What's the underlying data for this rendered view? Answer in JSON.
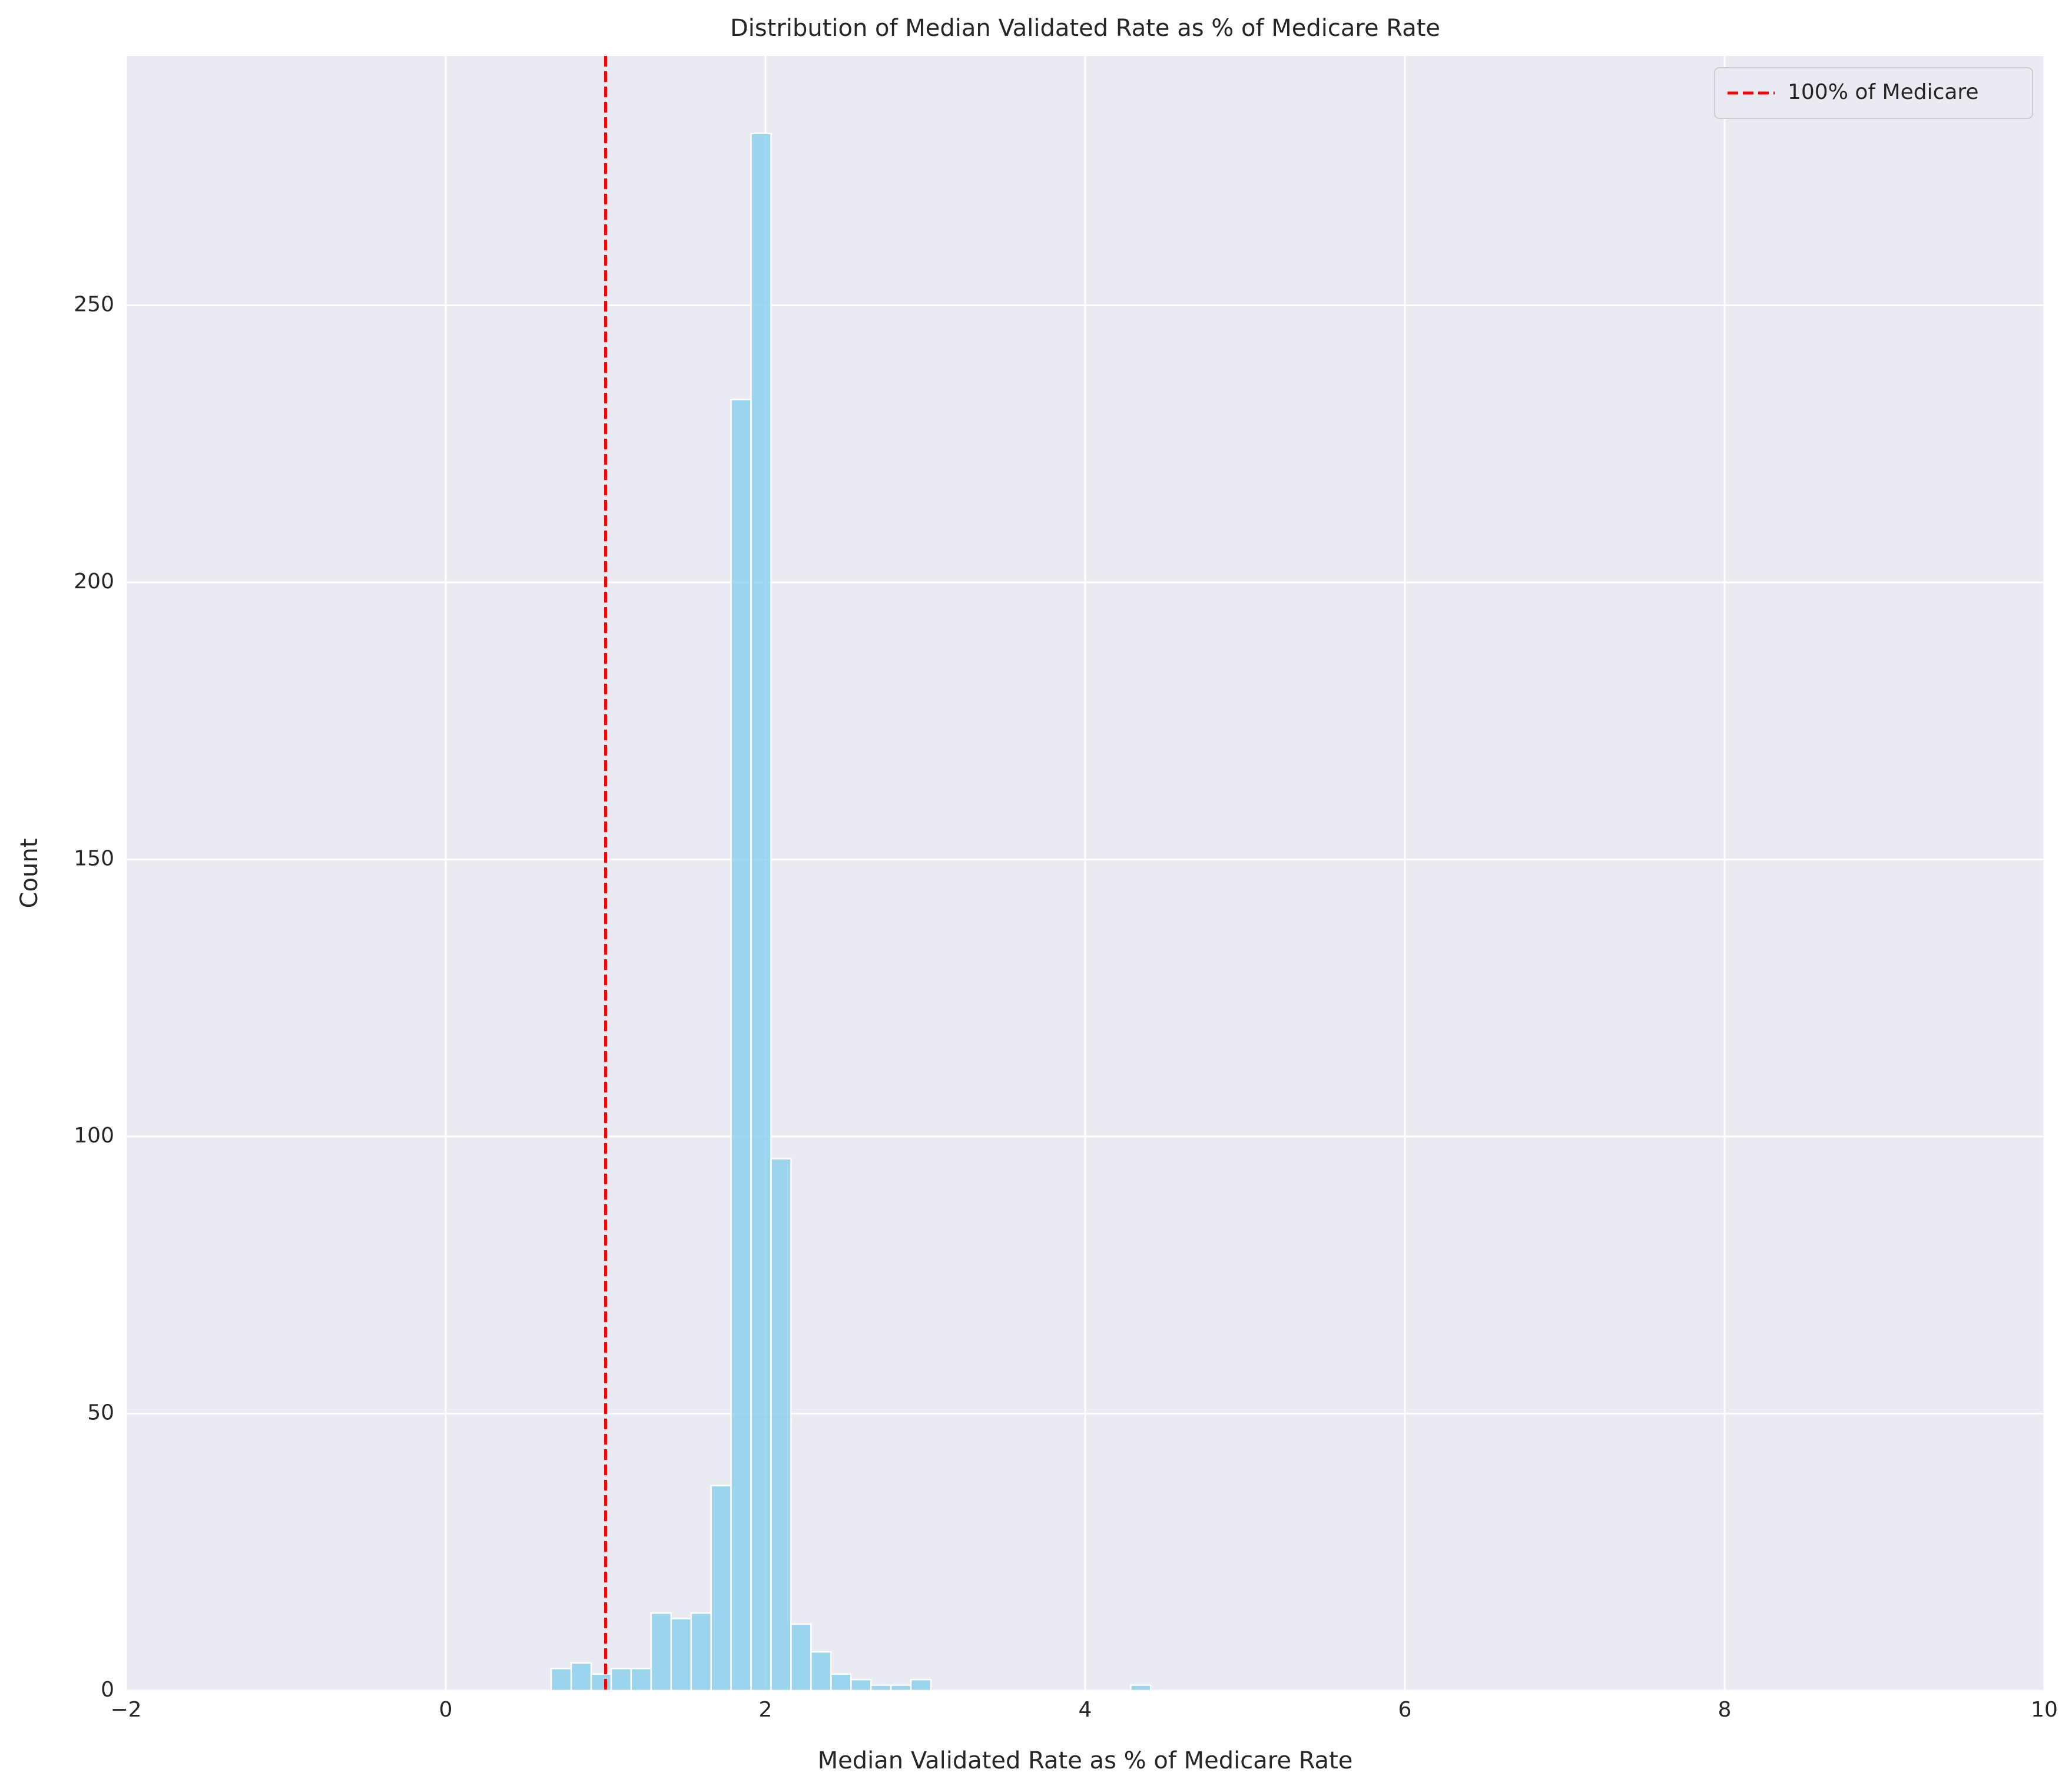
{
  "chart_data": {
    "type": "histogram",
    "title": "Distribution of Median Validated Rate as % of Medicare Rate",
    "x_label": "Median Validated Rate as % of Medicare Rate",
    "y_label": "Count",
    "bins": [
      0.66,
      0.785,
      0.91,
      1.035,
      1.16,
      1.285,
      1.41,
      1.535,
      1.66,
      1.785,
      1.91,
      2.035,
      2.16,
      2.285,
      2.41,
      2.535,
      2.66,
      2.785,
      2.91,
      3.035,
      3.16,
      3.285,
      3.41,
      3.535,
      3.66,
      3.785,
      3.91,
      4.035,
      4.16,
      4.285,
      4.41
    ],
    "values": [
      4,
      5,
      3,
      4,
      4,
      14,
      13,
      14,
      37,
      233,
      281,
      96,
      12,
      7,
      3,
      2,
      1,
      1,
      2,
      0,
      0,
      0,
      0,
      0,
      0,
      0,
      0,
      0,
      0,
      1
    ],
    "color": "#87ceeb",
    "xlim": [
      -2,
      10
    ],
    "xticks": [
      {
        "value": -2,
        "label": "−2"
      },
      0,
      2,
      4,
      6,
      8,
      10
    ],
    "ylim": [
      0,
      295
    ],
    "yticks": [
      0,
      50,
      100,
      150,
      200,
      250
    ],
    "grid": true,
    "vline": {
      "x": 1,
      "label": "100% of Medicare",
      "color": "#ff0000"
    },
    "legend": "upper right"
  }
}
